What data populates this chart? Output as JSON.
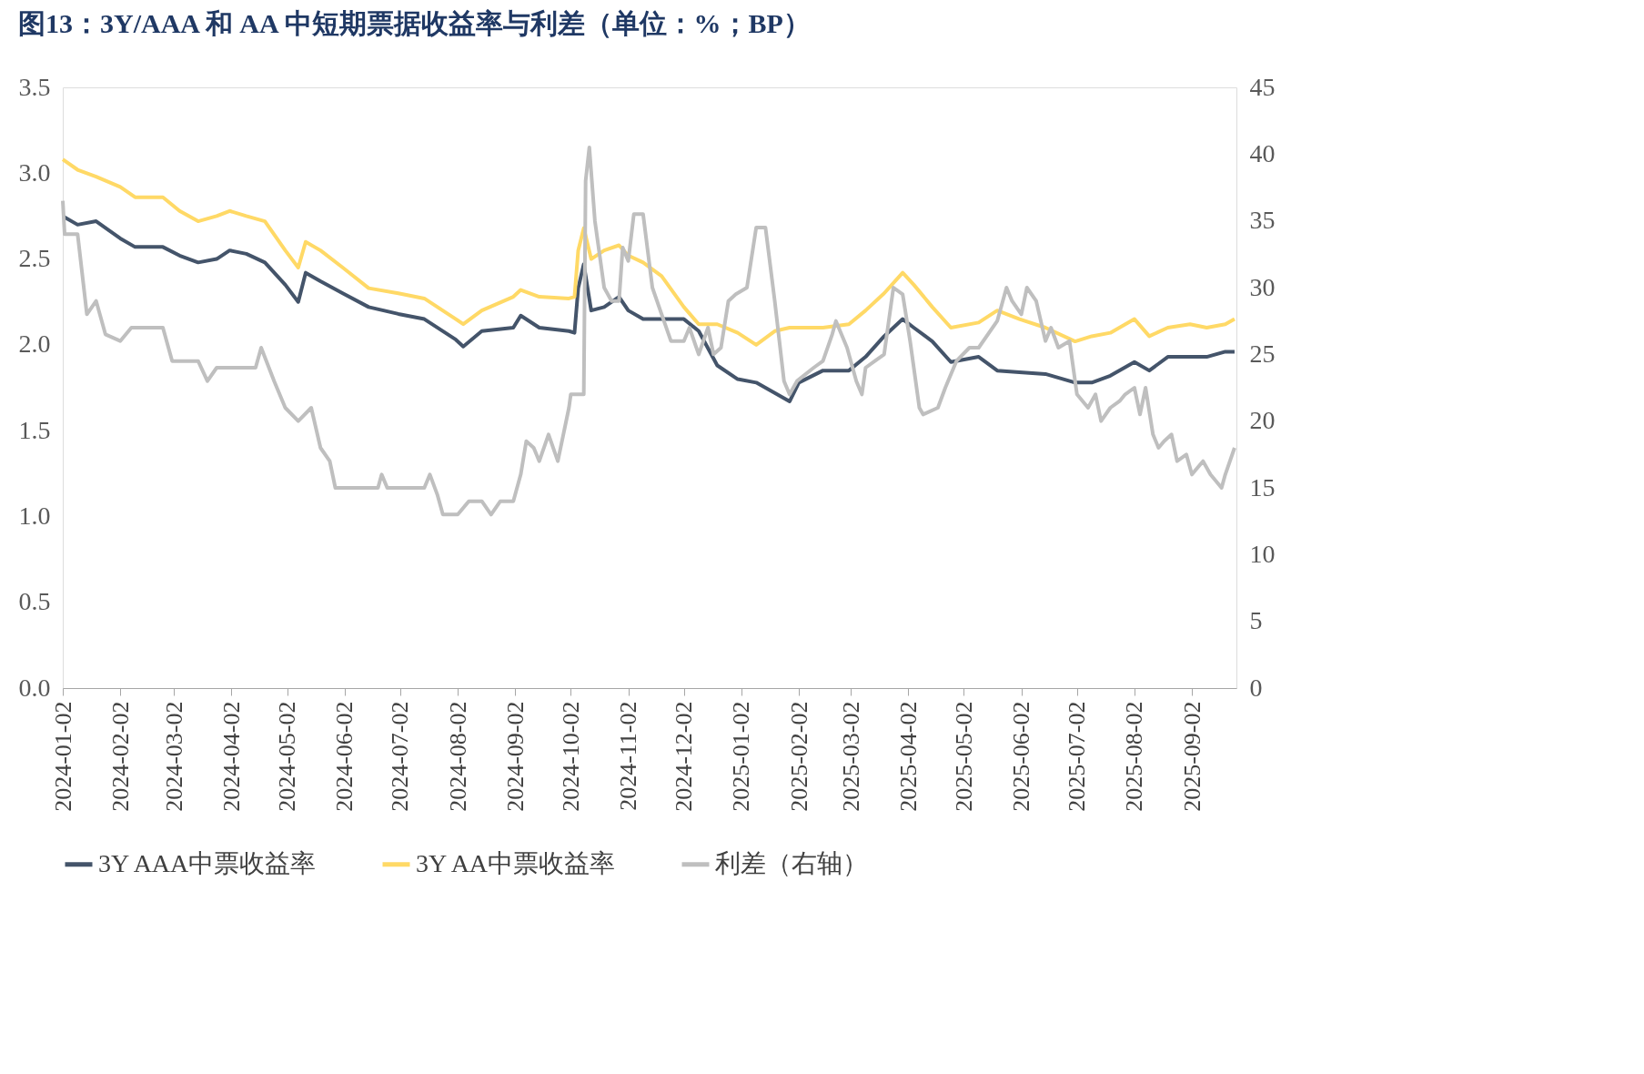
{
  "chart_data": {
    "type": "line",
    "title": "图13：3Y/AAA 和 AA 中短期票据收益率与利差（单位：%；BP）",
    "xlim": [
      "2024-01-02",
      "2025-09-26"
    ],
    "xticks": [
      "2024-01-02",
      "2024-02-02",
      "2024-03-02",
      "2024-04-02",
      "2024-05-02",
      "2024-06-02",
      "2024-07-02",
      "2024-08-02",
      "2024-09-02",
      "2024-10-02",
      "2024-11-02",
      "2024-12-02",
      "2025-01-02",
      "2025-02-02",
      "2025-03-02",
      "2025-04-02",
      "2025-05-02",
      "2025-06-02",
      "2025-07-02",
      "2025-08-02",
      "2025-09-02"
    ],
    "ylim": [
      0,
      3.5
    ],
    "yticks": [
      {
        "value": 0,
        "label": "0.0"
      },
      {
        "value": 0.5,
        "label": "0.5"
      },
      {
        "value": 1,
        "label": "1.0"
      },
      {
        "value": 1.5,
        "label": "1.5"
      },
      {
        "value": 2,
        "label": "2.0"
      },
      {
        "value": 2.5,
        "label": "2.5"
      },
      {
        "value": 3,
        "label": "3.0"
      },
      {
        "value": 3.5,
        "label": "3.5"
      }
    ],
    "y2lim": [
      0,
      45
    ],
    "y2ticks": [
      0,
      5,
      10,
      15,
      20,
      25,
      30,
      35,
      40,
      45
    ],
    "legend": "bottom",
    "line_style": "solid",
    "series": [
      {
        "name": "3Y AAA中票收益率",
        "color": "#44546a",
        "x": [
          "2024-01-02",
          "2024-01-10",
          "2024-01-20",
          "2024-02-02",
          "2024-02-10",
          "2024-02-25",
          "2024-03-05",
          "2024-03-15",
          "2024-03-25",
          "2024-04-01",
          "2024-04-10",
          "2024-04-20",
          "2024-05-01",
          "2024-05-08",
          "2024-05-12",
          "2024-05-20",
          "2024-06-01",
          "2024-06-15",
          "2024-07-01",
          "2024-07-15",
          "2024-08-01",
          "2024-08-05",
          "2024-08-15",
          "2024-09-01",
          "2024-09-05",
          "2024-09-15",
          "2024-10-01",
          "2024-10-04",
          "2024-10-06",
          "2024-10-09",
          "2024-10-13",
          "2024-10-20",
          "2024-10-28",
          "2024-11-02",
          "2024-11-10",
          "2024-11-20",
          "2024-12-02",
          "2024-12-10",
          "2024-12-20",
          "2024-12-31",
          "2025-01-10",
          "2025-01-20",
          "2025-01-28",
          "2025-02-02",
          "2025-02-15",
          "2025-03-01",
          "2025-03-10",
          "2025-03-20",
          "2025-03-30",
          "2025-04-05",
          "2025-04-15",
          "2025-04-25",
          "2025-05-10",
          "2025-05-20",
          "2025-06-01",
          "2025-06-15",
          "2025-07-01",
          "2025-07-10",
          "2025-07-20",
          "2025-08-02",
          "2025-08-10",
          "2025-08-20",
          "2025-09-01",
          "2025-09-10",
          "2025-09-20",
          "2025-09-25"
        ],
        "values": [
          2.75,
          2.7,
          2.72,
          2.62,
          2.57,
          2.57,
          2.52,
          2.48,
          2.5,
          2.55,
          2.53,
          2.48,
          2.35,
          2.25,
          2.42,
          2.37,
          2.3,
          2.22,
          2.18,
          2.15,
          2.03,
          1.99,
          2.08,
          2.1,
          2.17,
          2.1,
          2.08,
          2.07,
          2.33,
          2.47,
          2.2,
          2.22,
          2.28,
          2.2,
          2.15,
          2.15,
          2.15,
          2.08,
          1.88,
          1.8,
          1.78,
          1.72,
          1.67,
          1.78,
          1.85,
          1.85,
          1.93,
          2.05,
          2.15,
          2.1,
          2.02,
          1.9,
          1.93,
          1.85,
          1.84,
          1.83,
          1.78,
          1.78,
          1.82,
          1.9,
          1.85,
          1.93,
          1.93,
          1.93,
          1.96,
          1.96
        ]
      },
      {
        "name": "3Y AA中票收益率",
        "color": "#ffd966",
        "x": [
          "2024-01-02",
          "2024-01-10",
          "2024-01-20",
          "2024-02-02",
          "2024-02-10",
          "2024-02-25",
          "2024-03-05",
          "2024-03-15",
          "2024-03-25",
          "2024-04-01",
          "2024-04-10",
          "2024-04-20",
          "2024-05-01",
          "2024-05-08",
          "2024-05-12",
          "2024-05-20",
          "2024-06-01",
          "2024-06-15",
          "2024-07-01",
          "2024-07-15",
          "2024-08-01",
          "2024-08-05",
          "2024-08-15",
          "2024-09-01",
          "2024-09-05",
          "2024-09-15",
          "2024-10-01",
          "2024-10-04",
          "2024-10-06",
          "2024-10-09",
          "2024-10-13",
          "2024-10-20",
          "2024-10-28",
          "2024-11-02",
          "2024-11-10",
          "2024-11-20",
          "2024-12-02",
          "2024-12-10",
          "2024-12-20",
          "2024-12-31",
          "2025-01-10",
          "2025-01-20",
          "2025-01-28",
          "2025-02-02",
          "2025-02-15",
          "2025-03-01",
          "2025-03-10",
          "2025-03-20",
          "2025-03-30",
          "2025-04-05",
          "2025-04-15",
          "2025-04-25",
          "2025-05-10",
          "2025-05-20",
          "2025-06-01",
          "2025-06-15",
          "2025-07-01",
          "2025-07-10",
          "2025-07-20",
          "2025-08-02",
          "2025-08-10",
          "2025-08-20",
          "2025-09-01",
          "2025-09-10",
          "2025-09-20",
          "2025-09-25"
        ],
        "values": [
          3.08,
          3.02,
          2.98,
          2.92,
          2.86,
          2.86,
          2.78,
          2.72,
          2.75,
          2.78,
          2.75,
          2.72,
          2.55,
          2.45,
          2.6,
          2.55,
          2.45,
          2.33,
          2.3,
          2.27,
          2.15,
          2.12,
          2.2,
          2.28,
          2.32,
          2.28,
          2.27,
          2.28,
          2.55,
          2.68,
          2.5,
          2.55,
          2.58,
          2.52,
          2.48,
          2.4,
          2.22,
          2.12,
          2.12,
          2.07,
          2.0,
          2.08,
          2.1,
          2.1,
          2.1,
          2.12,
          2.2,
          2.3,
          2.42,
          2.35,
          2.22,
          2.1,
          2.13,
          2.2,
          2.15,
          2.1,
          2.02,
          2.05,
          2.07,
          2.15,
          2.05,
          2.1,
          2.12,
          2.1,
          2.12,
          2.15
        ]
      },
      {
        "name": "利差（右轴）",
        "color": "#bfbfbf",
        "axis": "y2",
        "x": [
          "2024-01-02",
          "2024-01-03",
          "2024-01-10",
          "2024-01-15",
          "2024-01-20",
          "2024-01-25",
          "2024-02-02",
          "2024-02-08",
          "2024-02-25",
          "2024-03-01",
          "2024-03-15",
          "2024-03-20",
          "2024-03-25",
          "2024-04-15",
          "2024-04-18",
          "2024-04-25",
          "2024-05-01",
          "2024-05-08",
          "2024-05-15",
          "2024-05-20",
          "2024-05-25",
          "2024-05-28",
          "2024-06-20",
          "2024-06-22",
          "2024-06-25",
          "2024-07-15",
          "2024-07-18",
          "2024-07-22",
          "2024-07-25",
          "2024-08-02",
          "2024-08-08",
          "2024-08-15",
          "2024-08-20",
          "2024-08-25",
          "2024-09-01",
          "2024-09-05",
          "2024-09-08",
          "2024-09-12",
          "2024-09-15",
          "2024-09-20",
          "2024-09-25",
          "2024-10-01",
          "2024-10-02",
          "2024-10-09",
          "2024-10-10",
          "2024-10-12",
          "2024-10-15",
          "2024-10-20",
          "2024-10-24",
          "2024-10-28",
          "2024-10-30",
          "2024-11-02",
          "2024-11-05",
          "2024-11-10",
          "2024-11-15",
          "2024-11-20",
          "2024-11-25",
          "2024-12-02",
          "2024-12-05",
          "2024-12-10",
          "2024-12-15",
          "2024-12-18",
          "2024-12-22",
          "2024-12-26",
          "2024-12-30",
          "2025-01-05",
          "2025-01-10",
          "2025-01-15",
          "2025-01-20",
          "2025-01-25",
          "2025-01-28",
          "2025-02-01",
          "2025-02-10",
          "2025-02-15",
          "2025-02-20",
          "2025-02-22",
          "2025-02-28",
          "2025-03-05",
          "2025-03-08",
          "2025-03-10",
          "2025-03-15",
          "2025-03-20",
          "2025-03-25",
          "2025-03-30",
          "2025-04-03",
          "2025-04-08",
          "2025-04-10",
          "2025-04-18",
          "2025-04-22",
          "2025-04-28",
          "2025-05-05",
          "2025-05-10",
          "2025-05-20",
          "2025-05-25",
          "2025-05-28",
          "2025-06-02",
          "2025-06-05",
          "2025-06-10",
          "2025-06-15",
          "2025-06-18",
          "2025-06-22",
          "2025-06-28",
          "2025-07-02",
          "2025-07-08",
          "2025-07-12",
          "2025-07-15",
          "2025-07-20",
          "2025-07-25",
          "2025-07-28",
          "2025-08-02",
          "2025-08-05",
          "2025-08-08",
          "2025-08-12",
          "2025-08-15",
          "2025-08-18",
          "2025-08-22",
          "2025-08-25",
          "2025-08-30",
          "2025-09-02",
          "2025-09-08",
          "2025-09-12",
          "2025-09-18",
          "2025-09-20",
          "2025-09-25"
        ],
        "values": [
          36.5,
          34,
          34,
          28,
          29,
          26.5,
          26,
          27,
          27,
          24.5,
          24.5,
          23,
          24,
          24,
          25.5,
          23,
          21,
          20,
          21,
          18,
          17,
          15,
          15,
          16,
          15,
          15,
          16,
          14.5,
          13,
          13,
          14,
          14,
          13,
          14,
          14,
          16,
          18.5,
          18,
          17,
          19,
          17,
          21,
          22,
          22,
          38,
          40.5,
          35,
          30,
          29,
          29,
          33,
          32,
          35.5,
          35.5,
          30,
          28,
          26,
          26,
          27,
          25,
          27,
          25,
          25.5,
          29,
          29.5,
          30,
          34.5,
          34.5,
          29,
          23,
          22,
          23,
          24,
          24.5,
          26.5,
          27.5,
          25.5,
          23,
          22,
          24,
          24.5,
          25,
          30,
          29.5,
          26,
          21,
          20.5,
          21,
          22.5,
          24.5,
          25.5,
          25.5,
          27.5,
          30,
          29,
          28,
          30,
          29,
          26,
          27,
          25.5,
          26,
          22,
          21,
          22,
          20,
          21,
          21.5,
          22,
          22.5,
          20.5,
          22.5,
          19,
          18,
          18.5,
          19,
          17,
          17.5,
          16,
          17,
          16,
          15,
          16,
          18
        ]
      }
    ]
  }
}
